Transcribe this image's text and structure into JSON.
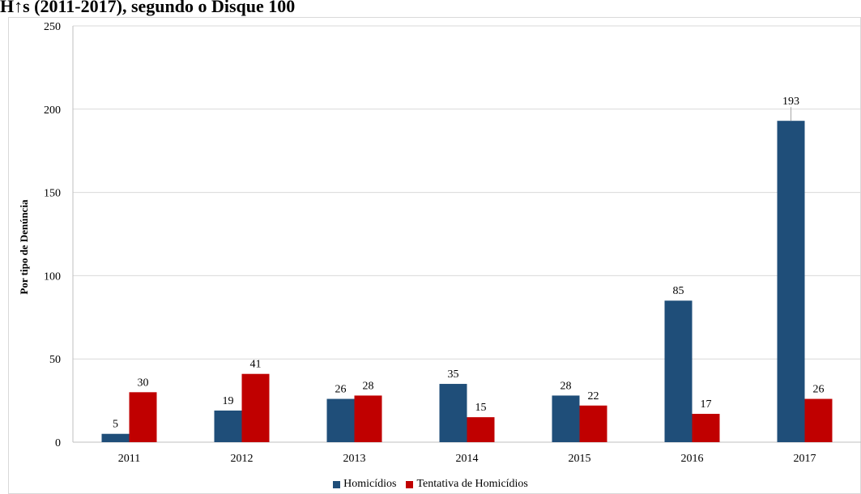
{
  "chart_data": {
    "type": "bar",
    "title": "H↑s (2011-2017), segundo o Disque 100",
    "ylabel": "Por tipo de Denúncia",
    "xlabel": "",
    "ylim": [
      0,
      250
    ],
    "yticks": [
      0,
      50,
      100,
      150,
      200,
      250
    ],
    "grid": true,
    "legend_position": "bottom",
    "categories": [
      "2011",
      "2012",
      "2013",
      "2014",
      "2015",
      "2016",
      "2017"
    ],
    "series": [
      {
        "name": "Homicídios",
        "color": "#1f4e79",
        "values": [
          5,
          19,
          26,
          35,
          28,
          85,
          193
        ]
      },
      {
        "name": "Tentativa de Homicídios",
        "color": "#c00000",
        "values": [
          30,
          41,
          28,
          15,
          22,
          17,
          26
        ]
      }
    ]
  }
}
